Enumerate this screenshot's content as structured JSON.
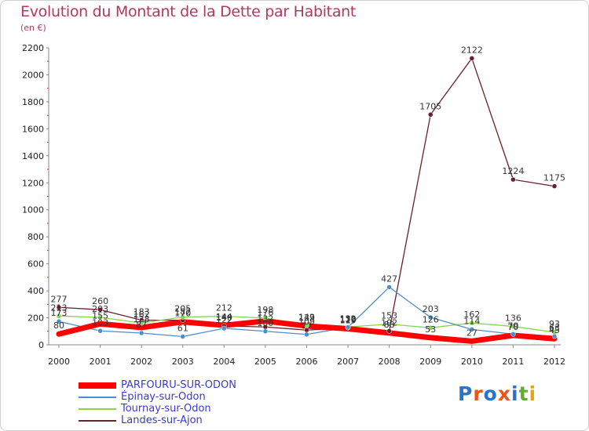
{
  "header": {
    "title": "Evolution du Montant de la Dette par Habitant",
    "subtitle": "(en €)"
  },
  "logo": {
    "text": "Proxiti",
    "letters": [
      "P",
      "r",
      "o",
      "x",
      "i",
      "t",
      "i"
    ],
    "colors": [
      "#2a73c9",
      "#e8561b",
      "#2a73c9",
      "#e8561b",
      "#2a73c9",
      "#5fae2e",
      "#e8a01b"
    ]
  },
  "chart_data": {
    "type": "line",
    "x": [
      2000,
      2001,
      2002,
      2003,
      2004,
      2005,
      2006,
      2007,
      2008,
      2009,
      2010,
      2011,
      2012
    ],
    "ylim": [
      0,
      2200
    ],
    "yticks": [
      0,
      200,
      400,
      600,
      800,
      1000,
      1200,
      1400,
      1600,
      1800,
      2000,
      2200
    ],
    "grid": false,
    "legend_position": "bottom-left",
    "series": [
      {
        "name": "PARFOURU-SUR-ODON",
        "color": "#ff0000",
        "values": [
          80,
          155,
          128,
          170,
          144,
          176,
          139,
          119,
          88,
          53,
          27,
          70,
          45
        ],
        "labels": [
          "80",
          "155",
          "128",
          "170",
          "144",
          "176",
          "139",
          "119",
          "88",
          "53",
          "27",
          "70",
          "45"
        ]
      },
      {
        "name": "Épinay-sur-Odon",
        "color": "#4d8ec9",
        "values": [
          173,
          103,
          87,
          61,
          122,
          100,
          77,
          130,
          427,
          203,
          114,
          79,
          63
        ],
        "labels": [
          "173",
          "103",
          "87",
          "61",
          "122",
          "100",
          "77",
          "130",
          "427",
          "203",
          "114",
          "79",
          "63"
        ]
      },
      {
        "name": "Tournay-sur-Odon",
        "color": "#86d44f",
        "values": [
          213,
          203,
          162,
          205,
          212,
          198,
          143,
          132,
          153,
          126,
          162,
          136,
          93
        ],
        "labels": [
          "213",
          "203",
          "162",
          "205",
          "212",
          "198",
          "143",
          "132",
          "153",
          "126",
          "162",
          "136",
          "93"
        ]
      },
      {
        "name": "Landes-sur-Ajon",
        "color": "#6b1f2a",
        "values": [
          277,
          260,
          183,
          182,
          140,
          132,
          109,
          126,
          102,
          1705,
          2122,
          1224,
          1175
        ],
        "labels": [
          "277",
          "260",
          "183",
          "182",
          "140",
          "132",
          "109",
          "126",
          "102",
          "1705",
          "2122",
          "1224",
          "1175"
        ]
      }
    ]
  }
}
